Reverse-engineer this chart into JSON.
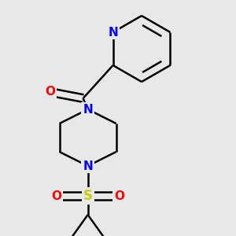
{
  "background_color": "#e8e8e8",
  "atom_colors": {
    "C": "#000000",
    "N": "#0000ff",
    "O": "#ff0000",
    "S": "#cccc00"
  },
  "bond_color": "#000000",
  "bond_width": 1.8,
  "dbo": 0.055,
  "figsize": [
    3.0,
    3.0
  ],
  "dpi": 100,
  "xlim": [
    0.5,
    3.0
  ],
  "ylim": [
    0.2,
    3.2
  ]
}
